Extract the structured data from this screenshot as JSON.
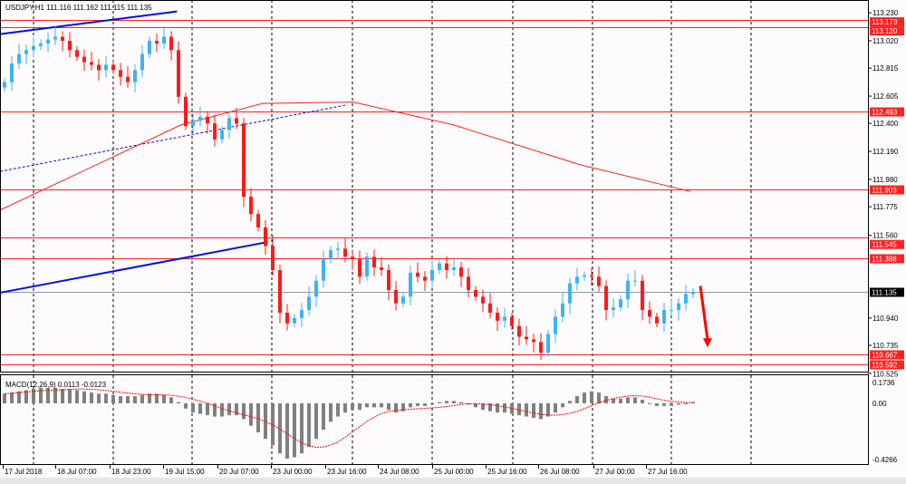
{
  "title": "USDJPY,H1  111.116 111.162 111.115 111.135",
  "macd_label": "MACD(12,26,9) 0.0113 -0.0123",
  "colors": {
    "bull": "#3cb4f0",
    "bear": "#ff1a1a",
    "level": "#ff2020",
    "trend": "#0010e0",
    "ma": "#ff2020",
    "hist": "#808080",
    "signal": "#ff0000",
    "current": "#000000",
    "arrow": "#ff0000"
  },
  "chart_data": {
    "type": "candlestick",
    "symbol": "USDJPY",
    "timeframe": "H1",
    "ohlc_last": {
      "open": 111.116,
      "high": 111.162,
      "low": 111.115,
      "close": 111.135
    },
    "ylim": [
      110.525,
      113.23
    ],
    "y_ticks": [
      "113.230",
      "113.020",
      "112.815",
      "112.605",
      "112.400",
      "112.190",
      "111.980",
      "111.775",
      "111.560",
      "110.940",
      "110.735",
      "110.525"
    ],
    "x_ticks": [
      "17 Jul 2018",
      "18 Jul 07:00",
      "18 Jul 23:00",
      "19 Jul 15:00",
      "20 Jul 07:00",
      "23 Jul 00:00",
      "23 Jul 16:00",
      "24 Jul 08:00",
      "25 Jul 00:00",
      "25 Jul 16:00",
      "26 Jul 08:00",
      "27 Jul 00:00",
      "27 Jul 16:00"
    ],
    "closes": [
      112.71,
      112.85,
      112.92,
      112.95,
      112.98,
      113.0,
      113.03,
      113.05,
      113.02,
      112.95,
      112.9,
      112.86,
      112.84,
      112.8,
      112.84,
      112.8,
      112.75,
      112.71,
      112.8,
      112.92,
      113.02,
      113.0,
      113.05,
      112.95,
      112.6,
      112.38,
      112.42,
      112.45,
      112.4,
      112.28,
      112.35,
      112.44,
      112.4,
      111.85,
      111.72,
      111.62,
      111.48,
      111.3,
      110.98,
      110.9,
      110.94,
      111.0,
      111.1,
      111.22,
      111.38,
      111.45,
      111.46,
      111.4,
      111.38,
      111.25,
      111.4,
      111.32,
      111.3,
      111.15,
      111.05,
      111.1,
      111.28,
      111.25,
      111.22,
      111.3,
      111.35,
      111.3,
      111.32,
      111.25,
      111.15,
      111.1,
      111.05,
      110.98,
      110.92,
      110.95,
      110.88,
      110.8,
      110.78,
      110.76,
      110.68,
      110.82,
      110.95,
      111.05,
      111.2,
      111.25,
      111.26,
      111.25,
      111.18,
      111.0,
      111.02,
      111.08,
      111.22,
      111.22,
      111.0,
      110.95,
      110.9,
      111.0,
      111.0,
      111.05,
      111.12,
      111.135
    ],
    "levels": [
      {
        "price": 113.173,
        "label": "113.173"
      },
      {
        "price": 113.12,
        "label": "113.120"
      },
      {
        "price": 112.493,
        "label": "112.493"
      },
      {
        "price": 111.903,
        "label": "111.903"
      },
      {
        "price": 111.545,
        "label": "111.545"
      },
      {
        "price": 111.388,
        "label": "111.388"
      },
      {
        "price": 110.667,
        "label": "110.667"
      },
      {
        "price": 110.592,
        "label": "110.592"
      }
    ],
    "current_price": {
      "price": 111.135,
      "label": "111.135"
    },
    "trendlines": [
      {
        "style": "solid",
        "from": [
          -0.6,
          113.07
        ],
        "to": [
          23.8,
          113.24
        ]
      },
      {
        "style": "dashed",
        "from": [
          -0.6,
          112.04
        ],
        "to": [
          47.3,
          112.54
        ]
      },
      {
        "style": "solid",
        "from": [
          -0.6,
          111.13
        ],
        "to": [
          36.3,
          111.51
        ]
      }
    ],
    "moving_average": [
      [
        -0.6,
        111.75
      ],
      [
        24.4,
        112.39
      ],
      [
        35.6,
        112.55
      ],
      [
        48.1,
        112.56
      ],
      [
        61.9,
        112.39
      ],
      [
        79.4,
        112.09
      ],
      [
        94.6,
        111.89
      ]
    ],
    "arrow": {
      "direction": "down",
      "from": [
        96,
        111.18
      ],
      "to": [
        97,
        110.72
      ]
    },
    "macd": {
      "params": "12,26,9",
      "main": 0.0113,
      "signal": -0.0123,
      "ylim": [
        -0.4266,
        0.1736
      ],
      "y_ticks": [
        "0.1736",
        "0.00",
        "-0.4266"
      ],
      "histogram": [
        0.08,
        0.09,
        0.1,
        0.11,
        0.12,
        0.13,
        0.13,
        0.13,
        0.12,
        0.12,
        0.11,
        0.1,
        0.09,
        0.08,
        0.08,
        0.07,
        0.06,
        0.06,
        0.06,
        0.07,
        0.08,
        0.08,
        0.07,
        0.05,
        0.01,
        -0.04,
        -0.07,
        -0.08,
        -0.09,
        -0.1,
        -0.1,
        -0.09,
        -0.09,
        -0.12,
        -0.17,
        -0.22,
        -0.27,
        -0.32,
        -0.38,
        -0.42,
        -0.41,
        -0.38,
        -0.33,
        -0.27,
        -0.2,
        -0.14,
        -0.1,
        -0.07,
        -0.05,
        -0.05,
        -0.03,
        -0.03,
        -0.03,
        -0.05,
        -0.07,
        -0.06,
        -0.03,
        -0.02,
        -0.02,
        0.0,
        0.01,
        0.02,
        0.02,
        0.01,
        -0.01,
        -0.03,
        -0.05,
        -0.06,
        -0.07,
        -0.07,
        -0.08,
        -0.09,
        -0.1,
        -0.11,
        -0.12,
        -0.1,
        -0.07,
        -0.03,
        0.02,
        0.06,
        0.09,
        0.1,
        0.09,
        0.06,
        0.04,
        0.04,
        0.05,
        0.05,
        0.03,
        0.0,
        -0.02,
        -0.02,
        -0.02,
        -0.01,
        0.0,
        0.0113
      ]
    }
  }
}
